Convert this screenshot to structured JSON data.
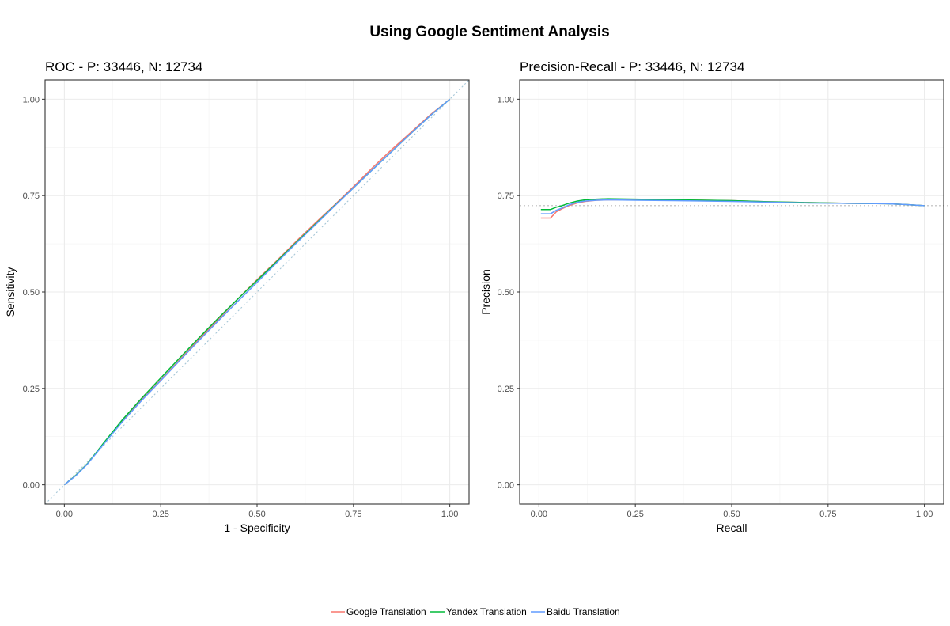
{
  "figure": {
    "title": "Using Google Sentiment Analysis"
  },
  "legend": {
    "items": [
      {
        "label": "Google Translation",
        "color": "#F8766D"
      },
      {
        "label": "Yandex Translation",
        "color": "#00BA38"
      },
      {
        "label": "Baidu Translation",
        "color": "#619CFF"
      }
    ]
  },
  "chart_data": [
    {
      "type": "line",
      "title": "ROC - P: 33446, N: 12734",
      "xlabel": "1 - Specificity",
      "ylabel": "Sensitivity",
      "xlim": [
        -0.05,
        1.05
      ],
      "ylim": [
        -0.05,
        1.05
      ],
      "xticks": [
        0,
        0.25,
        0.5,
        0.75,
        1
      ],
      "yticks": [
        0,
        0.25,
        0.5,
        0.75,
        1
      ],
      "tick_labels": [
        "0.00",
        "0.25",
        "0.50",
        "0.75",
        "1.00"
      ],
      "grid": true,
      "reference_line": {
        "type": "diagonal",
        "color": "#a8c8d8",
        "style": "dotted"
      },
      "series": [
        {
          "name": "Google Translation",
          "color": "#F8766D",
          "x": [
            0,
            0.03,
            0.06,
            0.1,
            0.15,
            0.2,
            0.25,
            0.3,
            0.35,
            0.4,
            0.45,
            0.5,
            0.55,
            0.6,
            0.65,
            0.7,
            0.75,
            0.8,
            0.85,
            0.9,
            0.95,
            1.0
          ],
          "y": [
            0,
            0.025,
            0.055,
            0.105,
            0.165,
            0.22,
            0.272,
            0.325,
            0.378,
            0.43,
            0.482,
            0.532,
            0.58,
            0.63,
            0.678,
            0.725,
            0.773,
            0.823,
            0.87,
            0.915,
            0.96,
            1.0
          ]
        },
        {
          "name": "Yandex Translation",
          "color": "#00BA38",
          "x": [
            0,
            0.03,
            0.06,
            0.1,
            0.15,
            0.2,
            0.25,
            0.3,
            0.35,
            0.4,
            0.45,
            0.5,
            0.55,
            0.6,
            0.65,
            0.7,
            0.75,
            0.8,
            0.85,
            0.9,
            0.95,
            1.0
          ],
          "y": [
            0,
            0.025,
            0.055,
            0.106,
            0.168,
            0.224,
            0.277,
            0.33,
            0.382,
            0.433,
            0.482,
            0.53,
            0.578,
            0.627,
            0.675,
            0.723,
            0.77,
            0.818,
            0.865,
            0.912,
            0.958,
            1.0
          ]
        },
        {
          "name": "Baidu Translation",
          "color": "#619CFF",
          "x": [
            0,
            0.03,
            0.06,
            0.1,
            0.15,
            0.2,
            0.25,
            0.3,
            0.35,
            0.4,
            0.45,
            0.5,
            0.55,
            0.6,
            0.65,
            0.7,
            0.75,
            0.8,
            0.85,
            0.9,
            0.95,
            1.0
          ],
          "y": [
            0,
            0.024,
            0.054,
            0.103,
            0.163,
            0.218,
            0.27,
            0.323,
            0.375,
            0.426,
            0.476,
            0.525,
            0.575,
            0.625,
            0.673,
            0.722,
            0.77,
            0.818,
            0.865,
            0.912,
            0.958,
            1.0
          ]
        }
      ]
    },
    {
      "type": "line",
      "title": "Precision-Recall - P: 33446, N: 12734",
      "xlabel": "Recall",
      "ylabel": "Precision",
      "xlim": [
        -0.05,
        1.05
      ],
      "ylim": [
        -0.05,
        1.05
      ],
      "xticks": [
        0,
        0.25,
        0.5,
        0.75,
        1
      ],
      "yticks": [
        0,
        0.25,
        0.5,
        0.75,
        1
      ],
      "tick_labels": [
        "0.00",
        "0.25",
        "0.50",
        "0.75",
        "1.00"
      ],
      "grid": true,
      "reference_line": {
        "type": "horizontal",
        "y": 0.724,
        "color": "#bbbbbb",
        "style": "dotted"
      },
      "series": [
        {
          "name": "Google Translation",
          "color": "#F8766D",
          "x": [
            0.005,
            0.03,
            0.045,
            0.06,
            0.08,
            0.1,
            0.12,
            0.15,
            0.18,
            0.25,
            0.35,
            0.5,
            0.6,
            0.7,
            0.8,
            0.9,
            0.95,
            1.0
          ],
          "y": [
            0.692,
            0.692,
            0.708,
            0.716,
            0.725,
            0.731,
            0.735,
            0.738,
            0.739,
            0.739,
            0.739,
            0.737,
            0.734,
            0.732,
            0.73,
            0.729,
            0.727,
            0.724
          ]
        },
        {
          "name": "Yandex Translation",
          "color": "#00BA38",
          "x": [
            0.005,
            0.03,
            0.045,
            0.06,
            0.08,
            0.1,
            0.12,
            0.15,
            0.18,
            0.25,
            0.35,
            0.5,
            0.6,
            0.7,
            0.8,
            0.9,
            0.95,
            1.0
          ],
          "y": [
            0.714,
            0.714,
            0.72,
            0.724,
            0.731,
            0.736,
            0.739,
            0.741,
            0.742,
            0.741,
            0.739,
            0.737,
            0.734,
            0.732,
            0.73,
            0.729,
            0.727,
            0.724
          ]
        },
        {
          "name": "Baidu Translation",
          "color": "#619CFF",
          "x": [
            0.005,
            0.03,
            0.045,
            0.06,
            0.08,
            0.1,
            0.12,
            0.15,
            0.18,
            0.25,
            0.35,
            0.5,
            0.6,
            0.7,
            0.8,
            0.9,
            0.95,
            1.0
          ],
          "y": [
            0.703,
            0.703,
            0.712,
            0.718,
            0.727,
            0.733,
            0.736,
            0.738,
            0.739,
            0.738,
            0.737,
            0.735,
            0.733,
            0.731,
            0.73,
            0.729,
            0.727,
            0.724
          ]
        }
      ]
    }
  ]
}
